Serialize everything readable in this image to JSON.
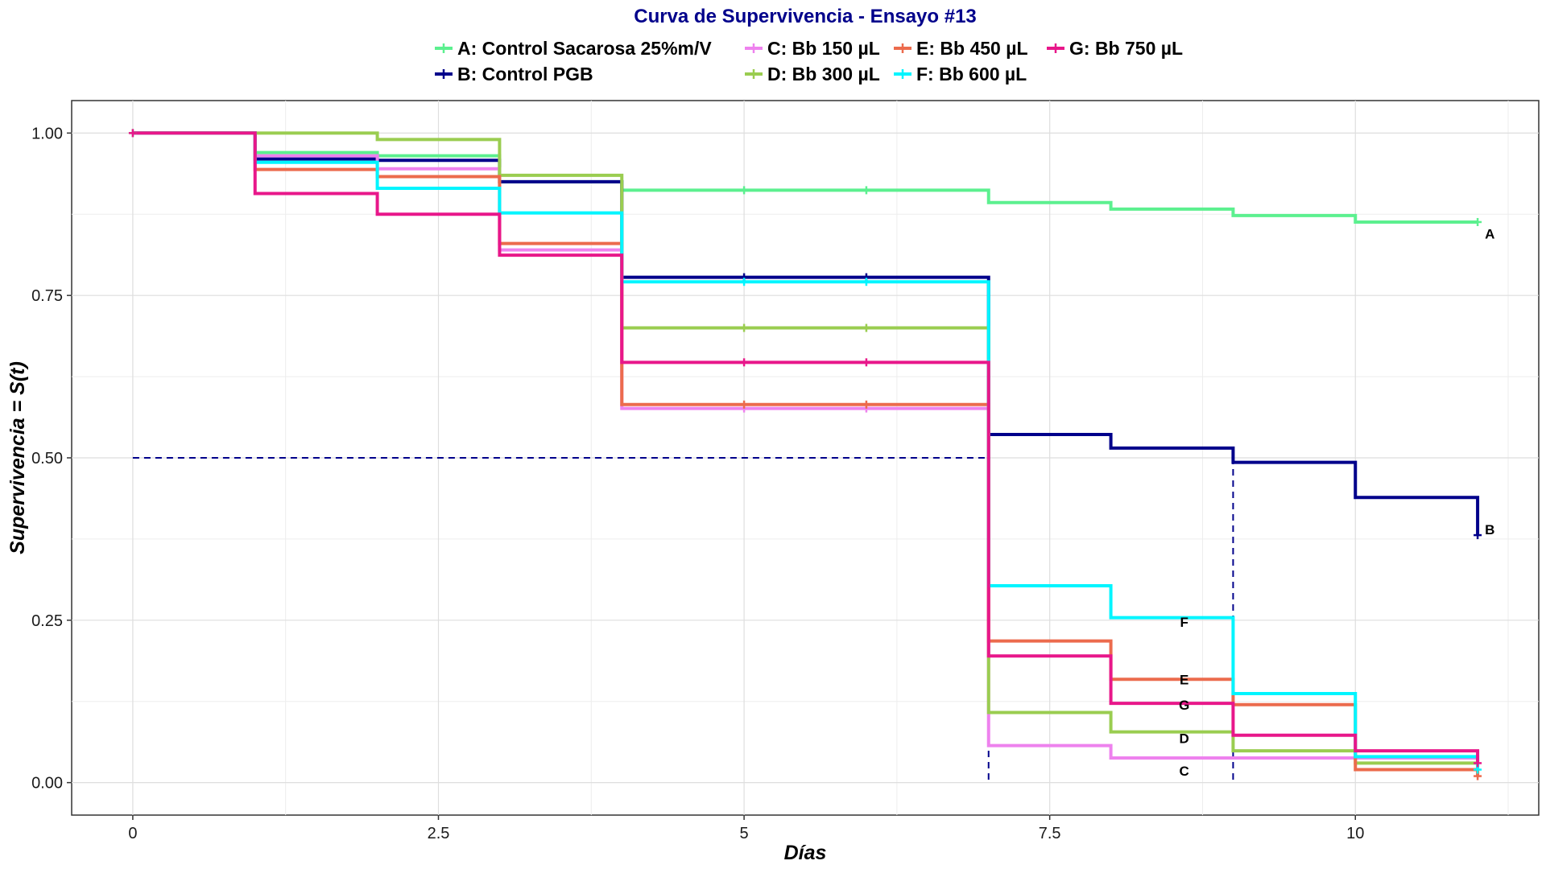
{
  "chart_data": {
    "type": "line",
    "step": true,
    "title": "Curva de Supervivencia - Ensayo #13",
    "xlabel": "Días",
    "ylabel": "Supervivencia = S(t)",
    "xlim": [
      -0.5,
      11.5
    ],
    "ylim": [
      -0.05,
      1.05
    ],
    "x_ticks": [
      0,
      2.5,
      5,
      7.5,
      10
    ],
    "x_tick_labels": [
      "0",
      "2.5",
      "5",
      "7.5",
      "10"
    ],
    "y_ticks": [
      0,
      0.25,
      0.5,
      0.75,
      1
    ],
    "y_tick_labels": [
      "0.00",
      "0.25",
      "0.50",
      "0.75",
      "1.00"
    ],
    "grid": true,
    "legend_position": "top",
    "series": [
      {
        "name": "A: Control  Sacarosa 25%m/V",
        "label": "A",
        "color": "#5cf08f",
        "x": [
          0,
          1,
          2,
          3,
          4,
          7,
          8,
          9,
          10,
          11
        ],
        "y": [
          1.0,
          0.97,
          0.965,
          0.925,
          0.912,
          0.893,
          0.883,
          0.873,
          0.863,
          0.863
        ],
        "censor_x": [
          0,
          5,
          6,
          11
        ],
        "censor_y": [
          1.0,
          0.912,
          0.912,
          0.863
        ]
      },
      {
        "name": "B: Control  PGB",
        "label": "B",
        "color": "#00008b",
        "x": [
          0,
          1,
          2,
          3,
          4,
          7,
          8,
          9,
          10,
          11
        ],
        "y": [
          1.0,
          0.96,
          0.958,
          0.925,
          0.778,
          0.536,
          0.515,
          0.493,
          0.439,
          0.381
        ],
        "censor_x": [
          5,
          6,
          11
        ],
        "censor_y": [
          0.778,
          0.778,
          0.381
        ]
      },
      {
        "name": "C: Bb 150 µL",
        "label": "C",
        "color": "#ee82ee",
        "x": [
          0,
          1,
          2,
          3,
          4,
          7,
          8,
          9,
          10,
          11
        ],
        "y": [
          1.0,
          0.965,
          0.945,
          0.82,
          0.576,
          0.057,
          0.038,
          0.038,
          0.038,
          0.038
        ],
        "censor_x": [
          5,
          6
        ],
        "censor_y": [
          0.576,
          0.576
        ]
      },
      {
        "name": "D: Bb 300 µL",
        "label": "D",
        "color": "#9acd50",
        "x": [
          0,
          1,
          2,
          3,
          4,
          7,
          8,
          9,
          10,
          11
        ],
        "y": [
          1.0,
          1.0,
          0.99,
          0.935,
          0.7,
          0.108,
          0.078,
          0.049,
          0.03,
          0.03
        ],
        "censor_x": [
          5,
          6
        ],
        "censor_y": [
          0.7,
          0.7
        ]
      },
      {
        "name": "E: Bb 450 µL",
        "label": "E",
        "color": "#ec6b4d",
        "x": [
          0,
          1,
          2,
          3,
          4,
          7,
          8,
          9,
          10,
          11
        ],
        "y": [
          1.0,
          0.944,
          0.933,
          0.83,
          0.582,
          0.218,
          0.159,
          0.12,
          0.02,
          0.01
        ],
        "censor_x": [
          5,
          6,
          11
        ],
        "censor_y": [
          0.582,
          0.582,
          0.01
        ]
      },
      {
        "name": "F: Bb 600 µL",
        "label": "F",
        "color": "#00f5ff",
        "x": [
          0,
          1,
          2,
          3,
          4,
          7,
          8,
          9,
          10,
          11
        ],
        "y": [
          1.0,
          0.955,
          0.915,
          0.877,
          0.771,
          0.303,
          0.254,
          0.137,
          0.04,
          0.02
        ],
        "censor_x": [
          5,
          6,
          11
        ],
        "censor_y": [
          0.771,
          0.771,
          0.02
        ]
      },
      {
        "name": "G: Bb 750 µL",
        "label": "G",
        "color": "#e8178a",
        "x": [
          0,
          1,
          2,
          3,
          4,
          7,
          8,
          9,
          10,
          11
        ],
        "y": [
          1.0,
          0.907,
          0.875,
          0.812,
          0.647,
          0.195,
          0.122,
          0.073,
          0.049,
          0.03
        ],
        "censor_x": [
          0,
          5,
          6,
          11
        ],
        "censor_y": [
          1.0,
          0.647,
          0.647,
          0.03
        ]
      }
    ],
    "curve_labels": [
      {
        "text": "A",
        "x": 11.1,
        "y": 0.845
      },
      {
        "text": "B",
        "x": 11.1,
        "y": 0.39
      },
      {
        "text": "F",
        "x": 8.6,
        "y": 0.247
      },
      {
        "text": "E",
        "x": 8.6,
        "y": 0.159
      },
      {
        "text": "G",
        "x": 8.6,
        "y": 0.12
      },
      {
        "text": "D",
        "x": 8.6,
        "y": 0.068
      },
      {
        "text": "C",
        "x": 8.6,
        "y": 0.018
      }
    ],
    "median_lines": [
      {
        "name": "median-horizontal",
        "x1": 0,
        "y1": 0.5,
        "x2": 7,
        "y2": 0.5
      },
      {
        "name": "median-vertical-day7",
        "x1": 7,
        "y1": 0.5,
        "x2": 7,
        "y2": 0
      },
      {
        "name": "median-vertical-day9",
        "x1": 9,
        "y1": 0.5,
        "x2": 9,
        "y2": 0
      }
    ],
    "median_color": "#00008b"
  }
}
